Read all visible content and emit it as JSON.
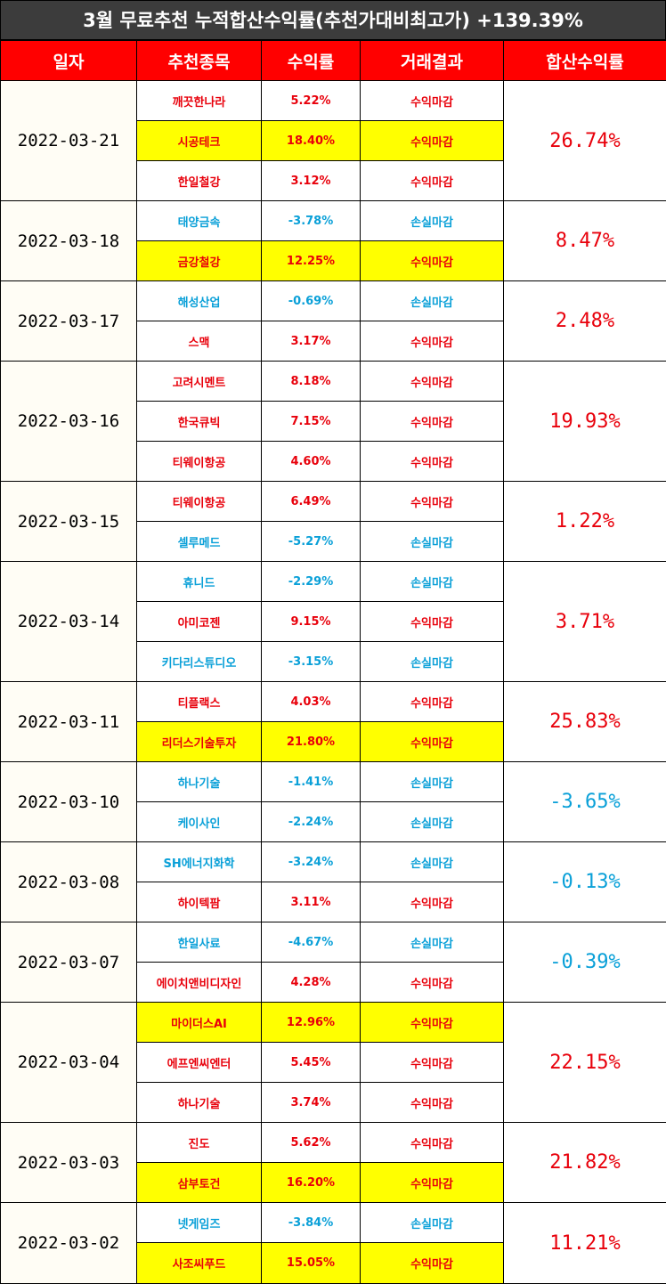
{
  "title": "3월 무료추천 누적합산수익률(추천가대비최고가) +139.39%",
  "headers": [
    "일자",
    "추천종목",
    "수익률",
    "거래결과",
    "합산수익률"
  ],
  "colors": {
    "profit": "#e8000b",
    "loss": "#0aa0d8",
    "highlight": "#ffff00",
    "header_bg": "#ff0000",
    "title_bg": "#3c3c3c"
  },
  "groups": [
    {
      "date": "2022-03-21",
      "total": "26.74%",
      "total_type": "pos",
      "rows": [
        {
          "stock": "깨끗한나라",
          "rate": "5.22%",
          "result": "수익마감",
          "type": "pos",
          "highlight": false
        },
        {
          "stock": "시공테크",
          "rate": "18.40%",
          "result": "수익마감",
          "type": "pos",
          "highlight": true
        },
        {
          "stock": "한일철강",
          "rate": "3.12%",
          "result": "수익마감",
          "type": "pos",
          "highlight": false
        }
      ]
    },
    {
      "date": "2022-03-18",
      "total": "8.47%",
      "total_type": "pos",
      "rows": [
        {
          "stock": "태양금속",
          "rate": "-3.78%",
          "result": "손실마감",
          "type": "neg",
          "highlight": false
        },
        {
          "stock": "금강철강",
          "rate": "12.25%",
          "result": "수익마감",
          "type": "pos",
          "highlight": true
        }
      ]
    },
    {
      "date": "2022-03-17",
      "total": "2.48%",
      "total_type": "pos",
      "rows": [
        {
          "stock": "해성산업",
          "rate": "-0.69%",
          "result": "손실마감",
          "type": "neg",
          "highlight": false
        },
        {
          "stock": "스맥",
          "rate": "3.17%",
          "result": "수익마감",
          "type": "pos",
          "highlight": false
        }
      ]
    },
    {
      "date": "2022-03-16",
      "total": "19.93%",
      "total_type": "pos",
      "rows": [
        {
          "stock": "고려시멘트",
          "rate": "8.18%",
          "result": "수익마감",
          "type": "pos",
          "highlight": false
        },
        {
          "stock": "한국큐빅",
          "rate": "7.15%",
          "result": "수익마감",
          "type": "pos",
          "highlight": false
        },
        {
          "stock": "티웨이항공",
          "rate": "4.60%",
          "result": "수익마감",
          "type": "pos",
          "highlight": false
        }
      ]
    },
    {
      "date": "2022-03-15",
      "total": "1.22%",
      "total_type": "pos",
      "rows": [
        {
          "stock": "티웨이항공",
          "rate": "6.49%",
          "result": "수익마감",
          "type": "pos",
          "highlight": false
        },
        {
          "stock": "셀루메드",
          "rate": "-5.27%",
          "result": "손실마감",
          "type": "neg",
          "highlight": false
        }
      ]
    },
    {
      "date": "2022-03-14",
      "total": "3.71%",
      "total_type": "pos",
      "rows": [
        {
          "stock": "휴니드",
          "rate": "-2.29%",
          "result": "손실마감",
          "type": "neg",
          "highlight": false
        },
        {
          "stock": "아미코젠",
          "rate": "9.15%",
          "result": "수익마감",
          "type": "pos",
          "highlight": false
        },
        {
          "stock": "키다리스튜디오",
          "rate": "-3.15%",
          "result": "손실마감",
          "type": "neg",
          "highlight": false
        }
      ]
    },
    {
      "date": "2022-03-11",
      "total": "25.83%",
      "total_type": "pos",
      "rows": [
        {
          "stock": "티플랙스",
          "rate": "4.03%",
          "result": "수익마감",
          "type": "pos",
          "highlight": false
        },
        {
          "stock": "리더스기술투자",
          "rate": "21.80%",
          "result": "수익마감",
          "type": "pos",
          "highlight": true
        }
      ]
    },
    {
      "date": "2022-03-10",
      "total": "-3.65%",
      "total_type": "neg",
      "rows": [
        {
          "stock": "하나기술",
          "rate": "-1.41%",
          "result": "손실마감",
          "type": "neg",
          "highlight": false
        },
        {
          "stock": "케이사인",
          "rate": "-2.24%",
          "result": "손실마감",
          "type": "neg",
          "highlight": false
        }
      ]
    },
    {
      "date": "2022-03-08",
      "total": "-0.13%",
      "total_type": "neg",
      "rows": [
        {
          "stock": "SH에너지화학",
          "rate": "-3.24%",
          "result": "손실마감",
          "type": "neg",
          "highlight": false
        },
        {
          "stock": "하이텍팜",
          "rate": "3.11%",
          "result": "수익마감",
          "type": "pos",
          "highlight": false
        }
      ]
    },
    {
      "date": "2022-03-07",
      "total": "-0.39%",
      "total_type": "neg",
      "rows": [
        {
          "stock": "한일사료",
          "rate": "-4.67%",
          "result": "손실마감",
          "type": "neg",
          "highlight": false
        },
        {
          "stock": "에이치앤비디자인",
          "rate": "4.28%",
          "result": "수익마감",
          "type": "pos",
          "highlight": false
        }
      ]
    },
    {
      "date": "2022-03-04",
      "total": "22.15%",
      "total_type": "pos",
      "rows": [
        {
          "stock": "마이더스AI",
          "rate": "12.96%",
          "result": "수익마감",
          "type": "pos",
          "highlight": true
        },
        {
          "stock": "에프엔씨엔터",
          "rate": "5.45%",
          "result": "수익마감",
          "type": "pos",
          "highlight": false
        },
        {
          "stock": "하나기술",
          "rate": "3.74%",
          "result": "수익마감",
          "type": "pos",
          "highlight": false
        }
      ]
    },
    {
      "date": "2022-03-03",
      "total": "21.82%",
      "total_type": "pos",
      "rows": [
        {
          "stock": "진도",
          "rate": "5.62%",
          "result": "수익마감",
          "type": "pos",
          "highlight": false
        },
        {
          "stock": "삼부토건",
          "rate": "16.20%",
          "result": "수익마감",
          "type": "pos",
          "highlight": true
        }
      ]
    },
    {
      "date": "2022-03-02",
      "total": "11.21%",
      "total_type": "pos",
      "rows": [
        {
          "stock": "넷게임즈",
          "rate": "-3.84%",
          "result": "손실마감",
          "type": "neg",
          "highlight": false
        },
        {
          "stock": "사조씨푸드",
          "rate": "15.05%",
          "result": "수익마감",
          "type": "pos",
          "highlight": true
        }
      ]
    }
  ]
}
